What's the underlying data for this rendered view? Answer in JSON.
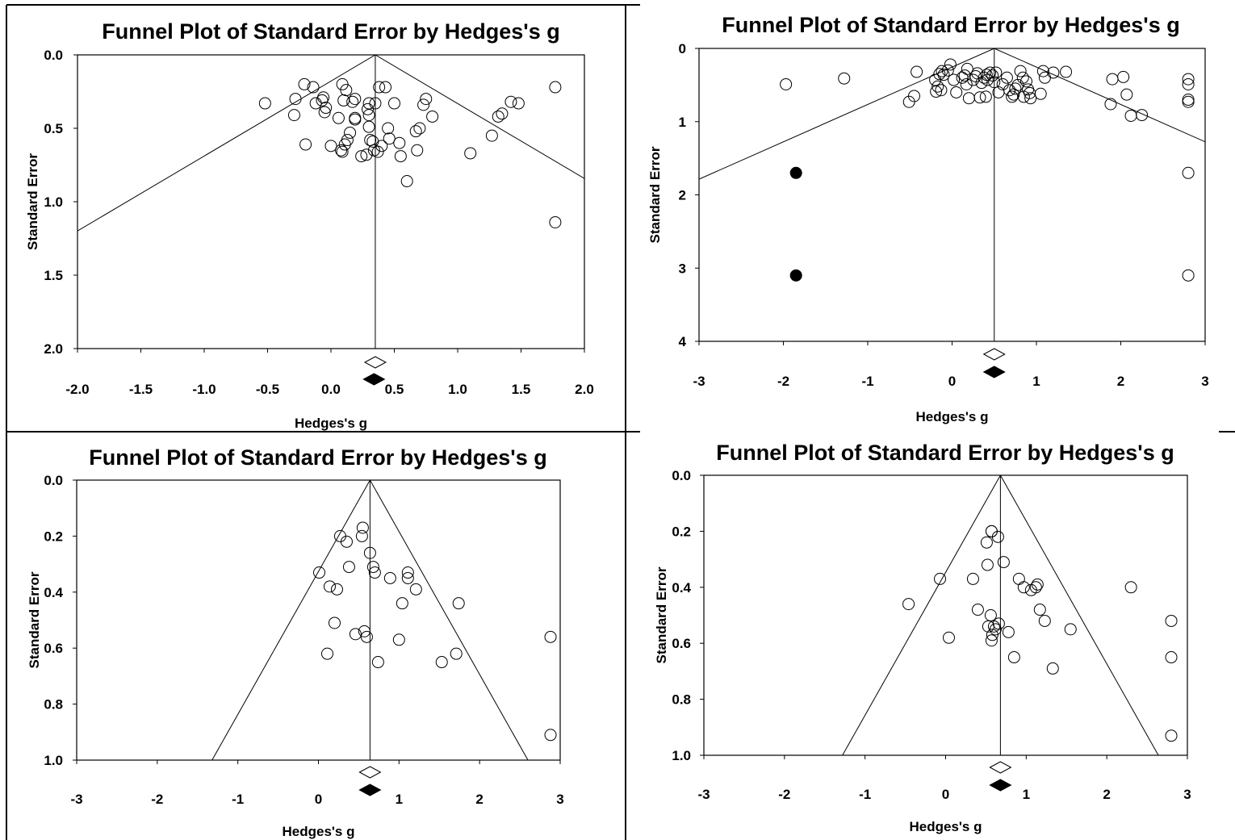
{
  "chart_data": [
    {
      "type": "scatter",
      "title": "Funnel Plot of Standard Error by Hedges's g",
      "xlabel": "Hedges's g",
      "ylabel": "Standard Error",
      "xlim": [
        -2.0,
        2.0
      ],
      "ylim": [
        0.0,
        2.0
      ],
      "y_reversed": true,
      "x_ticks": [
        "-2.0",
        "-1.5",
        "-1.0",
        "-0.5",
        "0.0",
        "0.5",
        "1.0",
        "1.5",
        "2.0"
      ],
      "y_ticks": [
        "0.0",
        "0.5",
        "1.0",
        "1.5",
        "2.0"
      ],
      "mean_observed": 0.35,
      "mean_imputed": 0.34,
      "series": [
        {
          "marker": "open-circle",
          "points": [
            [
              -0.52,
              0.33
            ],
            [
              -0.28,
              0.3
            ],
            [
              -0.29,
              0.41
            ],
            [
              -0.21,
              0.2
            ],
            [
              -0.14,
              0.22
            ],
            [
              -0.12,
              0.33
            ],
            [
              -0.07,
              0.31
            ],
            [
              -0.06,
              0.29
            ],
            [
              -0.04,
              0.36
            ],
            [
              -0.05,
              0.39
            ],
            [
              -0.2,
              0.61
            ],
            [
              0.0,
              0.62
            ],
            [
              0.06,
              0.43
            ],
            [
              0.09,
              0.2
            ],
            [
              0.12,
              0.24
            ],
            [
              0.1,
              0.31
            ],
            [
              0.17,
              0.32
            ],
            [
              0.19,
              0.3
            ],
            [
              0.19,
              0.43
            ],
            [
              0.19,
              0.44
            ],
            [
              0.15,
              0.53
            ],
            [
              0.13,
              0.58
            ],
            [
              0.09,
              0.66
            ],
            [
              0.11,
              0.61
            ],
            [
              0.08,
              0.65
            ],
            [
              0.24,
              0.69
            ],
            [
              0.28,
              0.68
            ],
            [
              0.3,
              0.33
            ],
            [
              0.29,
              0.37
            ],
            [
              0.3,
              0.41
            ],
            [
              0.3,
              0.49
            ],
            [
              0.31,
              0.58
            ],
            [
              0.33,
              0.59
            ],
            [
              0.34,
              0.65
            ],
            [
              0.37,
              0.66
            ],
            [
              0.35,
              0.33
            ],
            [
              0.38,
              0.22
            ],
            [
              0.43,
              0.22
            ],
            [
              0.4,
              0.62
            ],
            [
              0.45,
              0.5
            ],
            [
              0.46,
              0.57
            ],
            [
              0.5,
              0.33
            ],
            [
              0.54,
              0.6
            ],
            [
              0.55,
              0.69
            ],
            [
              0.6,
              0.86
            ],
            [
              0.67,
              0.52
            ],
            [
              0.7,
              0.5
            ],
            [
              0.68,
              0.65
            ],
            [
              0.73,
              0.34
            ],
            [
              0.75,
              0.3
            ],
            [
              0.8,
              0.42
            ],
            [
              1.1,
              0.67
            ],
            [
              1.27,
              0.55
            ],
            [
              1.32,
              0.42
            ],
            [
              1.35,
              0.4
            ],
            [
              1.42,
              0.32
            ],
            [
              1.48,
              0.33
            ],
            [
              1.77,
              0.22
            ],
            [
              1.77,
              1.14
            ]
          ]
        }
      ]
    },
    {
      "type": "scatter",
      "title": "Funnel Plot of Standard Error by Hedges's g",
      "xlabel": "Hedges's g",
      "ylabel": "Standard Error",
      "xlim": [
        -3,
        3
      ],
      "ylim": [
        0,
        4
      ],
      "y_reversed": true,
      "x_ticks": [
        "-3",
        "-2",
        "-1",
        "0",
        "1",
        "2",
        "3"
      ],
      "y_ticks": [
        "0",
        "1",
        "2",
        "3",
        "4"
      ],
      "mean_observed": 0.5,
      "mean_imputed": 0.5,
      "series": [
        {
          "marker": "open-circle",
          "points": [
            [
              -1.97,
              0.49
            ],
            [
              -1.28,
              0.41
            ],
            [
              -0.42,
              0.32
            ],
            [
              -0.45,
              0.65
            ],
            [
              -0.51,
              0.73
            ],
            [
              -0.2,
              0.43
            ],
            [
              -0.15,
              0.35
            ],
            [
              -0.12,
              0.31
            ],
            [
              -0.1,
              0.36
            ],
            [
              -0.05,
              0.3
            ],
            [
              -0.02,
              0.22
            ],
            [
              -0.17,
              0.52
            ],
            [
              -0.19,
              0.59
            ],
            [
              -0.13,
              0.57
            ],
            [
              0.02,
              0.43
            ],
            [
              0.05,
              0.6
            ],
            [
              0.12,
              0.4
            ],
            [
              0.15,
              0.37
            ],
            [
              0.17,
              0.49
            ],
            [
              0.18,
              0.28
            ],
            [
              0.2,
              0.68
            ],
            [
              0.25,
              0.43
            ],
            [
              0.28,
              0.38
            ],
            [
              0.3,
              0.34
            ],
            [
              0.33,
              0.67
            ],
            [
              0.35,
              0.47
            ],
            [
              0.38,
              0.4
            ],
            [
              0.41,
              0.36
            ],
            [
              0.4,
              0.66
            ],
            [
              0.42,
              0.43
            ],
            [
              0.45,
              0.33
            ],
            [
              0.48,
              0.37
            ],
            [
              0.5,
              0.46
            ],
            [
              0.52,
              0.33
            ],
            [
              0.55,
              0.6
            ],
            [
              0.6,
              0.49
            ],
            [
              0.65,
              0.4
            ],
            [
              0.68,
              0.57
            ],
            [
              0.71,
              0.66
            ],
            [
              0.73,
              0.63
            ],
            [
              0.75,
              0.55
            ],
            [
              0.78,
              0.5
            ],
            [
              0.81,
              0.31
            ],
            [
              0.84,
              0.4
            ],
            [
              0.85,
              0.66
            ],
            [
              0.88,
              0.45
            ],
            [
              0.9,
              0.56
            ],
            [
              0.92,
              0.61
            ],
            [
              0.93,
              0.68
            ],
            [
              1.05,
              0.62
            ],
            [
              1.08,
              0.31
            ],
            [
              1.1,
              0.4
            ],
            [
              1.2,
              0.33
            ],
            [
              1.35,
              0.32
            ],
            [
              1.9,
              0.42
            ],
            [
              1.88,
              0.76
            ],
            [
              2.03,
              0.39
            ],
            [
              2.07,
              0.63
            ],
            [
              2.12,
              0.92
            ],
            [
              2.25,
              0.91
            ],
            [
              2.8,
              0.42
            ],
            [
              2.8,
              0.49
            ],
            [
              2.8,
              0.7
            ],
            [
              2.8,
              0.73
            ],
            [
              2.8,
              1.7
            ],
            [
              2.8,
              3.1
            ]
          ]
        },
        {
          "marker": "filled-circle",
          "points": [
            [
              -1.85,
              1.7
            ],
            [
              -1.85,
              3.1
            ]
          ]
        }
      ]
    },
    {
      "type": "scatter",
      "title": "Funnel Plot of Standard Error by Hedges's g",
      "xlabel": "Hedges's g",
      "ylabel": "Standard Error",
      "xlim": [
        -3,
        3
      ],
      "ylim": [
        0.0,
        1.0
      ],
      "y_reversed": true,
      "x_ticks": [
        "-3",
        "-2",
        "-1",
        "0",
        "1",
        "2",
        "3"
      ],
      "y_ticks": [
        "0.0",
        "0.2",
        "0.4",
        "0.6",
        "0.8",
        "1.0"
      ],
      "mean_observed": 0.64,
      "mean_imputed": 0.64,
      "series": [
        {
          "marker": "open-circle",
          "points": [
            [
              0.01,
              0.33
            ],
            [
              0.14,
              0.38
            ],
            [
              0.23,
              0.39
            ],
            [
              0.27,
              0.2
            ],
            [
              0.35,
              0.22
            ],
            [
              0.38,
              0.31
            ],
            [
              0.2,
              0.51
            ],
            [
              0.11,
              0.62
            ],
            [
              0.46,
              0.55
            ],
            [
              0.55,
              0.17
            ],
            [
              0.54,
              0.2
            ],
            [
              0.57,
              0.54
            ],
            [
              0.6,
              0.56
            ],
            [
              0.64,
              0.26
            ],
            [
              0.68,
              0.31
            ],
            [
              0.7,
              0.33
            ],
            [
              0.74,
              0.65
            ],
            [
              0.89,
              0.35
            ],
            [
              1.0,
              0.57
            ],
            [
              1.04,
              0.44
            ],
            [
              1.11,
              0.33
            ],
            [
              1.11,
              0.35
            ],
            [
              1.21,
              0.39
            ],
            [
              1.53,
              0.65
            ],
            [
              1.71,
              0.62
            ],
            [
              1.74,
              0.44
            ],
            [
              2.88,
              0.56
            ],
            [
              2.88,
              0.91
            ]
          ]
        }
      ]
    },
    {
      "type": "scatter",
      "title": "Funnel Plot of Standard Error by Hedges's g",
      "xlabel": "Hedges's g",
      "ylabel": "Standard Error",
      "xlim": [
        -3,
        3
      ],
      "ylim": [
        0.0,
        1.0
      ],
      "y_reversed": true,
      "x_ticks": [
        "-3",
        "-2",
        "-1",
        "0",
        "1",
        "2",
        "3"
      ],
      "y_ticks": [
        "0.0",
        "0.2",
        "0.4",
        "0.6",
        "0.8",
        "1.0"
      ],
      "mean_observed": 0.68,
      "mean_imputed": 0.68,
      "series": [
        {
          "marker": "open-circle",
          "points": [
            [
              -0.46,
              0.46
            ],
            [
              -0.07,
              0.37
            ],
            [
              0.04,
              0.58
            ],
            [
              0.34,
              0.37
            ],
            [
              0.4,
              0.48
            ],
            [
              0.51,
              0.24
            ],
            [
              0.52,
              0.32
            ],
            [
              0.57,
              0.2
            ],
            [
              0.57,
              0.2
            ],
            [
              0.53,
              0.54
            ],
            [
              0.56,
              0.5
            ],
            [
              0.58,
              0.57
            ],
            [
              0.57,
              0.59
            ],
            [
              0.6,
              0.54
            ],
            [
              0.62,
              0.55
            ],
            [
              0.66,
              0.53
            ],
            [
              0.72,
              0.31
            ],
            [
              0.65,
              0.22
            ],
            [
              0.78,
              0.56
            ],
            [
              0.91,
              0.37
            ],
            [
              0.85,
              0.65
            ],
            [
              0.97,
              0.4
            ],
            [
              1.06,
              0.41
            ],
            [
              1.14,
              0.39
            ],
            [
              1.12,
              0.4
            ],
            [
              1.17,
              0.48
            ],
            [
              1.23,
              0.52
            ],
            [
              1.33,
              0.69
            ],
            [
              1.55,
              0.55
            ],
            [
              2.3,
              0.4
            ],
            [
              2.8,
              0.52
            ],
            [
              2.8,
              0.65
            ],
            [
              2.8,
              0.93
            ]
          ]
        }
      ]
    }
  ]
}
